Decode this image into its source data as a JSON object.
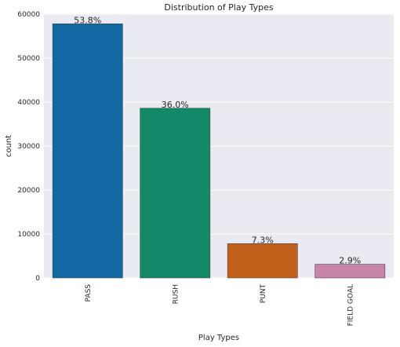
{
  "chart_data": {
    "type": "bar",
    "title": "Distribution of Play Types",
    "xlabel": "Play Types",
    "ylabel": "count",
    "categories": [
      "PASS",
      "RUSH",
      "PUNT",
      "FIELD GOAL"
    ],
    "values": [
      57800,
      38600,
      7800,
      3100
    ],
    "percent_labels": [
      "53.8%",
      "36.0%",
      "7.3%",
      "2.9%"
    ],
    "colors": [
      "#1268A3",
      "#128A6A",
      "#C2611C",
      "#C883A8"
    ],
    "ylim": [
      0,
      60000
    ],
    "yticks": [
      0,
      10000,
      20000,
      30000,
      40000,
      50000,
      60000
    ],
    "ytick_labels": [
      "0",
      "10000",
      "20000",
      "30000",
      "40000",
      "50000",
      "60000"
    ],
    "grid": true,
    "background": "#EAEAF2"
  }
}
